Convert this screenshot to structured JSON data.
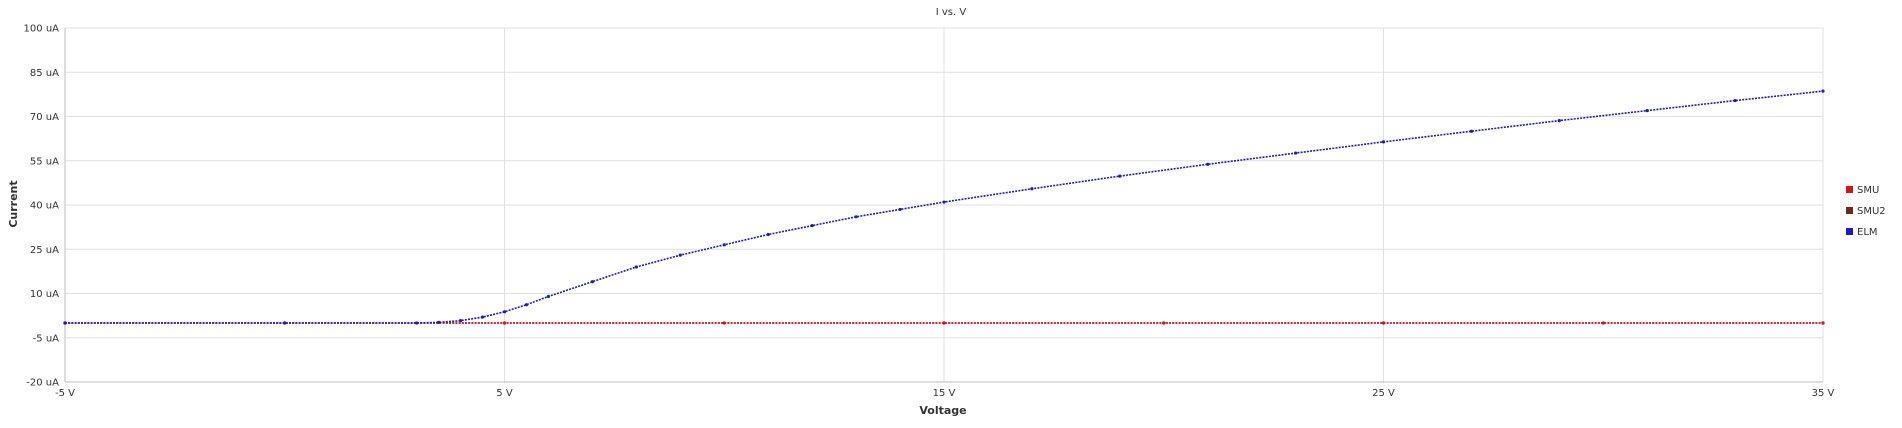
{
  "chart_data": {
    "type": "line",
    "title": "I vs. V",
    "xlabel": "Voltage",
    "ylabel": "Current",
    "xlim": [
      -5,
      35
    ],
    "ylim": [
      -20,
      100
    ],
    "x_ticks": [
      -5,
      5,
      15,
      25,
      35
    ],
    "x_tick_labels": [
      "-5 V",
      "5 V",
      "15 V",
      "25 V",
      "35 V"
    ],
    "y_ticks": [
      -20,
      -5,
      10,
      25,
      40,
      55,
      70,
      85,
      100
    ],
    "y_tick_labels": [
      "-20 uA",
      "-5 uA",
      "10 uA",
      "25 uA",
      "40 uA",
      "55 uA",
      "70 uA",
      "85 uA",
      "100 uA"
    ],
    "grid": true,
    "legend_position": "right",
    "series": [
      {
        "name": "SMU",
        "color": "#dd1111",
        "x": [
          -5,
          0,
          5,
          10,
          15,
          20,
          25,
          30,
          35
        ],
        "y": [
          0,
          0,
          0,
          0,
          0,
          0,
          0,
          0,
          0
        ]
      },
      {
        "name": "SMU2",
        "color": "#6b2a1a",
        "x": [
          -5,
          0,
          5,
          10,
          15,
          20,
          25,
          30,
          35
        ],
        "y": [
          0,
          0,
          0,
          0,
          0,
          0,
          0,
          0,
          0
        ]
      },
      {
        "name": "ELM",
        "color": "#1a1acc",
        "x": [
          -5,
          0,
          3,
          3.5,
          4,
          4.5,
          5,
          5.5,
          6,
          7,
          8,
          9,
          10,
          11,
          12,
          13,
          14,
          15,
          17,
          19,
          21,
          23,
          25,
          27,
          29,
          31,
          33,
          35
        ],
        "y": [
          0,
          0,
          0,
          0.2,
          0.8,
          2,
          3.8,
          6.2,
          9,
          14,
          19,
          23,
          26.5,
          30,
          33,
          36,
          38.5,
          41,
          45.5,
          49.8,
          53.8,
          57.6,
          61.4,
          65,
          68.6,
          72,
          75.4,
          78.6
        ]
      }
    ]
  }
}
